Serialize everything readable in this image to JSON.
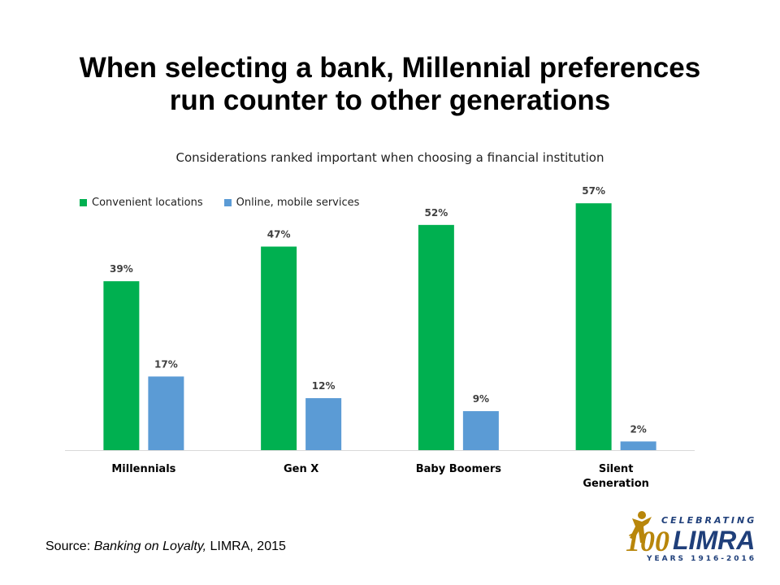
{
  "slide": {
    "title_line1": "When selecting a bank, Millennial preferences",
    "title_line2": "run counter to other generations",
    "source_prefix": "Source: ",
    "source_italic": "Banking on Loyalty,",
    "source_suffix": " LIMRA, 2015"
  },
  "logo": {
    "celebrating": "CELEBRATING",
    "number": "100",
    "brand": "LIMRA",
    "years": "YEARS 1916-2016",
    "icon": "figure-icon"
  },
  "chart_data": {
    "type": "bar",
    "title": "Considerations ranked important when choosing a financial institution",
    "xlabel": "",
    "ylabel": "",
    "categories": [
      "Millennials",
      "Gen X",
      "Baby Boomers",
      "Silent Generation"
    ],
    "series": [
      {
        "name": "Convenient locations",
        "values": [
          39,
          47,
          52,
          57
        ],
        "color": "#00B050"
      },
      {
        "name": "Online, mobile services",
        "values": [
          17,
          12,
          9,
          2
        ],
        "color": "#5B9BD5"
      }
    ],
    "value_suffix": "%",
    "ylim": [
      0,
      60
    ],
    "grid": false,
    "legend_position": "top-left"
  }
}
